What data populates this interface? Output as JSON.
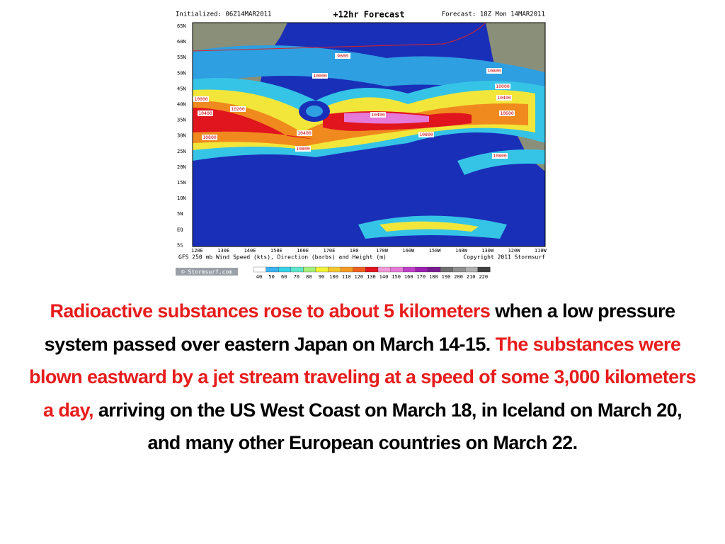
{
  "map": {
    "initialized": "Initialized: 06Z14MAR2011",
    "title": "+12hr Forecast",
    "forecast": "Forecast: 18Z Mon 14MAR2011",
    "latitudes": [
      "65N",
      "60N",
      "55N",
      "50N",
      "45N",
      "40N",
      "35N",
      "30N",
      "25N",
      "20N",
      "15N",
      "10N",
      "5N",
      "EQ",
      "5S"
    ],
    "longitudes": [
      "120E",
      "130E",
      "140E",
      "150E",
      "160E",
      "170E",
      "180",
      "170W",
      "160W",
      "150W",
      "140W",
      "130W",
      "120W",
      "110W"
    ],
    "caption": "GFS 250 mb Wind Speed (kts), Direction (barbs) and Height (m)",
    "copyright": "Copyright 2011 Stormsurf",
    "watermark": "© Stormsurf.com",
    "scale": [
      "40",
      "50",
      "60",
      "70",
      "80",
      "90",
      "100",
      "110",
      "120",
      "130",
      "140",
      "150",
      "160",
      "170",
      "180",
      "190",
      "200",
      "210",
      "220"
    ],
    "contours": [
      "9600",
      "10000",
      "10000",
      "10400",
      "10800",
      "10200",
      "10400",
      "10800",
      "10400",
      "10800",
      "10800",
      "10000",
      "10400",
      "10600",
      "10800"
    ]
  },
  "paragraph": [
    "Radioactive substances rose to about 5 kilometers",
    "when a low pressure system passed over eastern Japan on March 14-15.",
    "The substances were blown eastward by a jet stream traveling at a speed of some 3,000 kilometers a day,",
    "arriving on the US West Coast on March 18, in Iceland on March 20, and many other European countries on March 22."
  ]
}
